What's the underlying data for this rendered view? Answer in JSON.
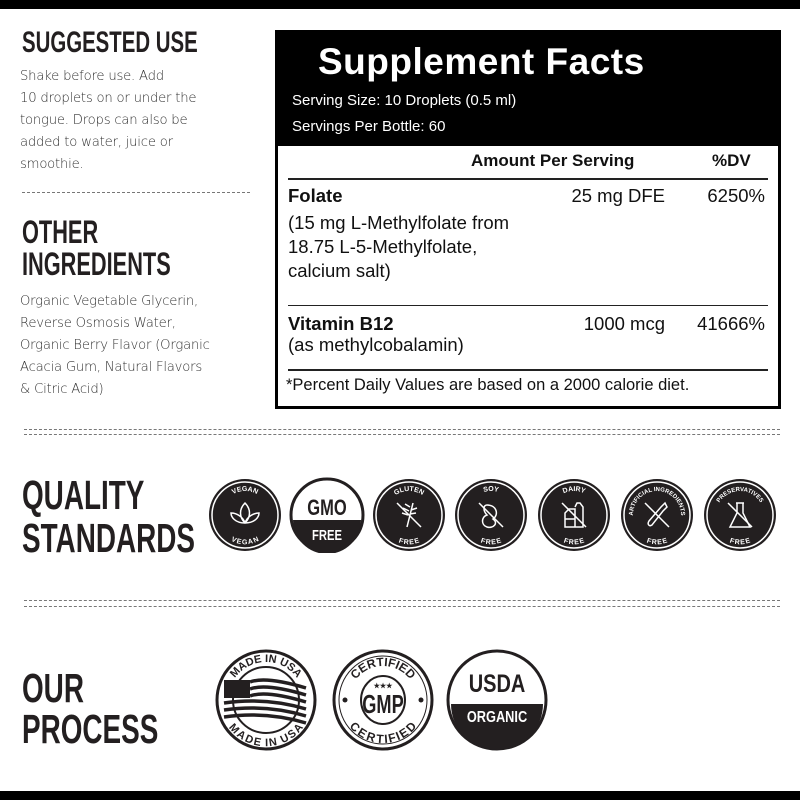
{
  "suggested_use": {
    "heading": "SUGGESTED USE",
    "lines": [
      "Shake before use. Add",
      "10 droplets on or under the",
      "tongue. Drops can also be",
      "added to water, juice or",
      "smoothie."
    ]
  },
  "other_ingredients": {
    "heading_line1": "OTHER",
    "heading_line2": "INGREDIENTS",
    "lines": [
      "Organic Vegetable Glycerin,",
      "Reverse Osmosis Water,",
      "Organic Berry Flavor (Organic",
      "Acacia Gum, Natural Flavors",
      "& Citric Acid)"
    ]
  },
  "supplement_facts": {
    "title": "Supplement Facts",
    "serving_size": "Serving Size: 10 Droplets (0.5 ml)",
    "servings_per": "Servings Per Bottle: 60",
    "col_amount": "Amount Per Serving",
    "col_dv": "%DV",
    "rows": [
      {
        "name": "Folate",
        "detail": [
          "(15 mg L-Methylfolate from",
          "18.75 L-5-Methylfolate,",
          "calcium salt)"
        ],
        "amount": "25 mg DFE",
        "dv": "6250%"
      },
      {
        "name": "Vitamin B12",
        "detail": [
          "(as methylcobalamin)"
        ],
        "amount": "1000 mcg",
        "dv": "41666%"
      }
    ],
    "footnote": "*Percent Daily Values are based on a 2000 calorie diet."
  },
  "quality": {
    "heading_line1": "QUALITY",
    "heading_line2": "STANDARDS",
    "badges": [
      {
        "icon": "leaf-icon",
        "top": "VEGAN",
        "bottom": "VEGAN"
      },
      {
        "icon": "gmo-icon",
        "top": "GMO",
        "bottom": "FREE"
      },
      {
        "icon": "wheat-icon",
        "top": "GLUTEN",
        "bottom": "FREE"
      },
      {
        "icon": "soybean-icon",
        "top": "SOY",
        "bottom": "FREE"
      },
      {
        "icon": "milk-carton-icon",
        "top": "DAIRY",
        "bottom": "FREE"
      },
      {
        "icon": "dropper-icon",
        "top": "ARTIFICIAL INGREDIENTS",
        "bottom": "FREE"
      },
      {
        "icon": "flask-icon",
        "top": "PRESERVATIVES",
        "bottom": "FREE"
      }
    ]
  },
  "process": {
    "heading_line1": "OUR",
    "heading_line2": "PROCESS",
    "badges": [
      {
        "icon": "us-flag-icon",
        "top": "MADE IN USA",
        "bottom": "MADE IN USA"
      },
      {
        "icon": "gmp-icon",
        "top": "CERTIFIED",
        "center": "GMP",
        "bottom": "CERTIFIED"
      },
      {
        "icon": "usda-organic-icon",
        "top": "USDA",
        "bottom": "ORGANIC"
      }
    ]
  },
  "colors": {
    "ink": "#231f20",
    "black": "#000000",
    "badge_fill": "#231f20"
  }
}
